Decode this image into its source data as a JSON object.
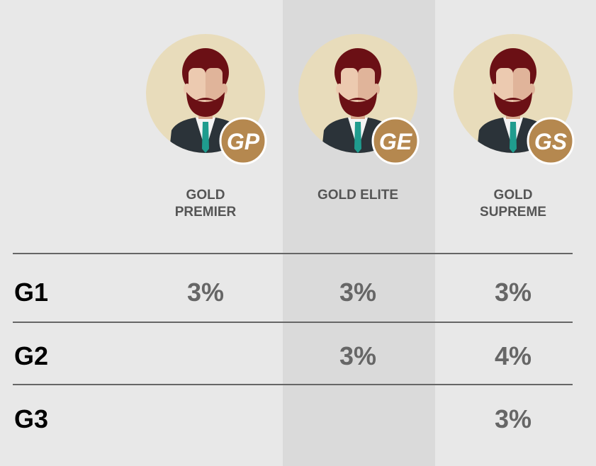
{
  "columns": [
    {
      "badge": "GP",
      "label": "GOLD PREMIER"
    },
    {
      "badge": "GE",
      "label": "GOLD ELITE"
    },
    {
      "badge": "GS",
      "label": "GOLD SUPREME"
    }
  ],
  "rows": [
    {
      "label": "G1",
      "cells": [
        "3%",
        "3%",
        "3%"
      ]
    },
    {
      "label": "G2",
      "cells": [
        null,
        "3%",
        "4%"
      ]
    },
    {
      "label": "G3",
      "cells": [
        null,
        null,
        "3%"
      ]
    }
  ]
}
